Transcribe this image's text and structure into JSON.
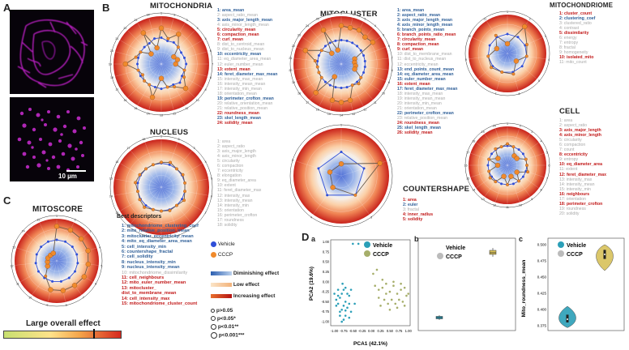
{
  "panels": {
    "A": "A",
    "B": "B",
    "C": "C",
    "D": "D",
    "Da": "a",
    "Db": "b",
    "Dc": "c"
  },
  "scale_bar": "10 µm",
  "titles": {
    "mitochondria": "MITOCHONDRIA",
    "mitocluster": "MITOCLUSTER",
    "mitochondriome": "MITOCHONDRIOME",
    "nucleus": "NUCLEUS",
    "countershape": "COUNTERSHAPE",
    "cell": "CELL",
    "mitoscore": "MITOSCORE",
    "best_descriptors": "Best descriptors",
    "large_effect": "Large overall effect"
  },
  "mito_features": [
    {
      "t": "1: area_mean",
      "c": "blue"
    },
    {
      "t": "2: aspect_ratio_mean",
      "c": "gray"
    },
    {
      "t": "3: axis_major_length_mean",
      "c": "blue"
    },
    {
      "t": "4: axis_minor_length_mean",
      "c": "gray"
    },
    {
      "t": "5: circularity_mean",
      "c": "red"
    },
    {
      "t": "6: compaction_mean",
      "c": "red"
    },
    {
      "t": "7: curl_mean",
      "c": "red"
    },
    {
      "t": "8: dist_to_centroid_mean",
      "c": "gray"
    },
    {
      "t": "9: dist_to_nucleus_mean",
      "c": "gray"
    },
    {
      "t": "10: eccentricity_mean",
      "c": "blue"
    },
    {
      "t": "11: eq_diameter_area_mean",
      "c": "gray"
    },
    {
      "t": "12: euler_number_mean",
      "c": "gray"
    },
    {
      "t": "13: extent_mean",
      "c": "red"
    },
    {
      "t": "14: feret_diameter_max_mean",
      "c": "blue"
    },
    {
      "t": "15: intensity_max_mean",
      "c": "gray"
    },
    {
      "t": "16: intensity_mean_mean",
      "c": "gray"
    },
    {
      "t": "17: intensity_min_mean",
      "c": "gray"
    },
    {
      "t": "18: orientation_mean",
      "c": "gray"
    },
    {
      "t": "19: perimeter_crofton_mean",
      "c": "blue"
    },
    {
      "t": "20: relative_orientation_mean",
      "c": "gray"
    },
    {
      "t": "21: relative_position_mean",
      "c": "gray"
    },
    {
      "t": "22: roundness_mean",
      "c": "red"
    },
    {
      "t": "23: skel_length_mean",
      "c": "blue"
    },
    {
      "t": "24: solidity_mean",
      "c": "red"
    }
  ],
  "cluster_features": [
    {
      "t": "1: area_mean",
      "c": "blue"
    },
    {
      "t": "2: aspect_ratio_mean",
      "c": "blue"
    },
    {
      "t": "3: axis_major_length_mean",
      "c": "blue"
    },
    {
      "t": "4: axis_minor_length_mean",
      "c": "blue"
    },
    {
      "t": "5: branch_points_mean",
      "c": "blue"
    },
    {
      "t": "6: branch_points_ratio_mean",
      "c": "red"
    },
    {
      "t": "7: circularity_mean",
      "c": "red"
    },
    {
      "t": "8: compaction_mean",
      "c": "red"
    },
    {
      "t": "9: curl_mean",
      "c": "red"
    },
    {
      "t": "10: dist_to_membrane_mean",
      "c": "gray"
    },
    {
      "t": "11: dist_to_nucleus_mean",
      "c": "gray"
    },
    {
      "t": "12: eccentricity_mean",
      "c": "gray"
    },
    {
      "t": "13: end_points_count_mean",
      "c": "blue"
    },
    {
      "t": "14: eq_diameter_area_mean",
      "c": "blue"
    },
    {
      "t": "15: euler_number_mean",
      "c": "blue"
    },
    {
      "t": "16: extent_mean",
      "c": "red"
    },
    {
      "t": "17: feret_diameter_max_mean",
      "c": "blue"
    },
    {
      "t": "18: intensity_max_mean",
      "c": "gray"
    },
    {
      "t": "19: intensity_mean_mean",
      "c": "gray"
    },
    {
      "t": "20: intensity_min_mean",
      "c": "gray"
    },
    {
      "t": "21: orientation_mean",
      "c": "gray"
    },
    {
      "t": "22: perimeter_crofton_mean",
      "c": "blue"
    },
    {
      "t": "23: relative_position_mean",
      "c": "gray"
    },
    {
      "t": "24: roundness_mean",
      "c": "red"
    },
    {
      "t": "25: skel_length_mean",
      "c": "blue"
    },
    {
      "t": "26: solidity_mean",
      "c": "red"
    }
  ],
  "mitochondriome_features": [
    {
      "t": "1: cluster_count",
      "c": "red"
    },
    {
      "t": "2: clustering_coef",
      "c": "blue"
    },
    {
      "t": "3: clustered_ratio",
      "c": "gray"
    },
    {
      "t": "4: contrast",
      "c": "gray"
    },
    {
      "t": "5: dissimilarity",
      "c": "red"
    },
    {
      "t": "6: energy",
      "c": "gray"
    },
    {
      "t": "7: entropy",
      "c": "gray"
    },
    {
      "t": "8: fractal",
      "c": "gray"
    },
    {
      "t": "9: homogeneity",
      "c": "gray"
    },
    {
      "t": "10: isolated_mito",
      "c": "red"
    },
    {
      "t": "11: mito_count",
      "c": "gray"
    }
  ],
  "nucleus_features": [
    {
      "t": "1: area",
      "c": "gray"
    },
    {
      "t": "2: aspect_ratio",
      "c": "gray"
    },
    {
      "t": "3: axis_major_length",
      "c": "gray"
    },
    {
      "t": "4: axis_minor_length",
      "c": "gray"
    },
    {
      "t": "5: circularity",
      "c": "gray"
    },
    {
      "t": "6: compaction",
      "c": "gray"
    },
    {
      "t": "7: eccentricity",
      "c": "gray"
    },
    {
      "t": "8: elongation",
      "c": "gray"
    },
    {
      "t": "9: eq_diameter_area",
      "c": "gray"
    },
    {
      "t": "10: extent",
      "c": "gray"
    },
    {
      "t": "11: feret_diameter_max",
      "c": "gray"
    },
    {
      "t": "12: intensity_max",
      "c": "gray"
    },
    {
      "t": "13: intensity_mean",
      "c": "gray"
    },
    {
      "t": "14: intensity_min",
      "c": "gray"
    },
    {
      "t": "15: orientation",
      "c": "gray"
    },
    {
      "t": "16: perimeter_crofton",
      "c": "gray"
    },
    {
      "t": "17: roundness",
      "c": "gray"
    },
    {
      "t": "18: solidity",
      "c": "gray"
    }
  ],
  "countershape_features": [
    {
      "t": "1: area",
      "c": "red"
    },
    {
      "t": "2: euler",
      "c": "blue"
    },
    {
      "t": "3: fractal",
      "c": "gray"
    },
    {
      "t": "4: inner_radius",
      "c": "red"
    },
    {
      "t": "5: solidity",
      "c": "red"
    }
  ],
  "cell_features": [
    {
      "t": "1: area",
      "c": "gray"
    },
    {
      "t": "2: aspect_ratio",
      "c": "gray"
    },
    {
      "t": "3: axis_major_length",
      "c": "red"
    },
    {
      "t": "4: axis_minor_length",
      "c": "red"
    },
    {
      "t": "5: circularity",
      "c": "gray"
    },
    {
      "t": "6: compaction",
      "c": "gray"
    },
    {
      "t": "7: count",
      "c": "gray"
    },
    {
      "t": "8: eccentricity",
      "c": "red"
    },
    {
      "t": "9: entropy",
      "c": "gray"
    },
    {
      "t": "10: eq_diameter_area",
      "c": "red"
    },
    {
      "t": "11: extent",
      "c": "gray"
    },
    {
      "t": "12: feret_diameter_max",
      "c": "red"
    },
    {
      "t": "13: intensity_max",
      "c": "gray"
    },
    {
      "t": "14: intensity_mean",
      "c": "gray"
    },
    {
      "t": "15: intensity_min",
      "c": "gray"
    },
    {
      "t": "16: neighbours",
      "c": "red"
    },
    {
      "t": "17: orientation",
      "c": "gray"
    },
    {
      "t": "18: perimeter_crofton",
      "c": "red"
    },
    {
      "t": "19: roundness",
      "c": "gray"
    },
    {
      "t": "20: solidity",
      "c": "gray"
    }
  ],
  "best_descriptors": [
    {
      "t": "1: mitochondriome_clustering_coef",
      "c": "blue"
    },
    {
      "t": "2: mito_relative_position_mean",
      "c": "blue"
    },
    {
      "t": "3: mitocluster_eccentricity_mean",
      "c": "blue"
    },
    {
      "t": "4: mito_eq_diameter_area_mean",
      "c": "blue"
    },
    {
      "t": "5: cell_intensity_min",
      "c": "blue"
    },
    {
      "t": "6: countershape_fractal",
      "c": "blue"
    },
    {
      "t": "7: cell_solidity",
      "c": "blue"
    },
    {
      "t": "8: nucleus_intensity_min",
      "c": "blue"
    },
    {
      "t": "9: nucleus_intensity_mean",
      "c": "blue"
    },
    {
      "t": "10: mitochondriome_dissimilarity",
      "c": "gray"
    },
    {
      "t": "11: cell_neighbours",
      "c": "red"
    },
    {
      "t": "12: mito_euler_number_mean",
      "c": "red"
    },
    {
      "t": "13: mitocluster_",
      "c": "red"
    },
    {
      "t": "dist_to_membrane_mean",
      "c": "red"
    },
    {
      "t": "14: cell_intensity_max",
      "c": "red"
    },
    {
      "t": "15: mitochondriome_cluster_count",
      "c": "red"
    }
  ],
  "legend": {
    "vehicle": "Vehicle",
    "cccp": "CCCP",
    "vehicle_color": "#2f4fd8",
    "cccp_color": "#f08a2c",
    "effects": [
      "Diminishing effect",
      "Low effect",
      "Increasing effect"
    ],
    "pvalues": [
      "p>0.05",
      "p<0.05*",
      "p<0.01**",
      "p<0.001***"
    ]
  },
  "pca": {
    "xlabel": "PCA1 (42.1%)",
    "ylabel": "PCA2 (19.6%)",
    "box_ylabel": "",
    "violin_ylabel": "Mito_roundness_mean"
  },
  "chart_data": [
    {
      "type": "scatter",
      "title": "",
      "xlabel": "PCA1 (42.1%)",
      "ylabel": "PCA2 (19.6%)",
      "xlim": [
        -1.1,
        1.05
      ],
      "ylim": [
        -1.1,
        1.05
      ],
      "xticks": [
        "-1.00",
        "-0.75",
        "-0.50",
        "-0.25",
        "0.00",
        "0.25",
        "0.50",
        "0.75",
        "1.00"
      ],
      "yticks": [
        "1.00",
        "0.75",
        "0.50",
        "0.25",
        "0.00",
        "-0.25",
        "-0.50",
        "-0.75",
        "-1.00"
      ],
      "series": [
        {
          "name": "Vehicle",
          "color": "#2b9fb8",
          "points": [
            [
              -0.75,
              -0.2
            ],
            [
              -0.8,
              -0.3
            ],
            [
              -0.85,
              -0.4
            ],
            [
              -0.9,
              -0.35
            ],
            [
              -0.95,
              -0.45
            ],
            [
              -0.7,
              -0.5
            ],
            [
              -0.75,
              -0.6
            ],
            [
              -0.8,
              -0.7
            ],
            [
              -0.85,
              -0.75
            ],
            [
              -0.9,
              -0.55
            ],
            [
              -0.65,
              -0.65
            ],
            [
              -0.7,
              -0.85
            ],
            [
              -0.6,
              -0.9
            ],
            [
              -0.55,
              -0.75
            ],
            [
              -0.75,
              -0.95
            ],
            [
              -0.95,
              -0.6
            ],
            [
              -0.85,
              -0.85
            ],
            [
              -0.6,
              -0.35
            ],
            [
              -0.7,
              -0.15
            ],
            [
              -0.78,
              -0.05
            ],
            [
              -0.5,
              0.95
            ],
            [
              -0.35,
              0.95
            ],
            [
              -0.45,
              -0.55
            ],
            [
              -0.55,
              -0.2
            ],
            [
              -0.65,
              -0.3
            ],
            [
              -0.9,
              -0.2
            ],
            [
              -1.0,
              -0.3
            ],
            [
              -0.8,
              -1.0
            ],
            [
              -0.7,
              -0.72
            ],
            [
              -0.6,
              -0.55
            ]
          ]
        },
        {
          "name": "CCCP",
          "color": "#a6ae6a",
          "points": [
            [
              0.1,
              -0.1
            ],
            [
              0.2,
              -0.2
            ],
            [
              0.3,
              -0.15
            ],
            [
              0.4,
              -0.3
            ],
            [
              0.5,
              -0.25
            ],
            [
              0.6,
              -0.1
            ],
            [
              0.7,
              -0.3
            ],
            [
              0.8,
              -0.2
            ],
            [
              0.9,
              -0.15
            ],
            [
              0.35,
              -0.45
            ],
            [
              0.45,
              -0.55
            ],
            [
              0.55,
              -0.45
            ],
            [
              0.65,
              -0.55
            ],
            [
              0.75,
              -0.45
            ],
            [
              0.85,
              -0.5
            ],
            [
              0.25,
              -0.6
            ],
            [
              0.5,
              -0.7
            ],
            [
              0.15,
              0.3
            ],
            [
              0.05,
              0.2
            ],
            [
              0.95,
              -0.35
            ],
            [
              0.7,
              -0.65
            ],
            [
              0.3,
              0.05
            ],
            [
              0.6,
              0.0
            ],
            [
              0.8,
              -0.05
            ],
            [
              0.4,
              -0.05
            ],
            [
              0.2,
              -0.4
            ],
            [
              1.0,
              -0.3
            ],
            [
              0.9,
              -0.6
            ]
          ]
        }
      ]
    },
    {
      "type": "box",
      "title": "",
      "categories": [
        "Vehicle",
        "CCCP"
      ],
      "series": [
        {
          "name": "Vehicle",
          "color": "#2b9fb8",
          "median": -0.8,
          "q1": -0.83,
          "q3": -0.77,
          "min": -0.86,
          "max": -0.74
        },
        {
          "name": "CCCP",
          "color": "#d8c15a",
          "median": 0.8,
          "q1": 0.76,
          "q3": 0.86,
          "min": 0.7,
          "max": 0.92
        }
      ]
    },
    {
      "type": "violin",
      "title": "",
      "ylabel": "Mito_roundness_mean",
      "categories": [
        "Vehicle",
        "CCCP"
      ],
      "yticks": [
        "0.500",
        "0.475",
        "0.450",
        "0.425",
        "0.400",
        "0.375"
      ],
      "ylim": [
        0.37,
        0.505
      ],
      "series": [
        {
          "name": "Vehicle",
          "color": "#2b9fb8",
          "median": 0.385,
          "q1": 0.38,
          "q3": 0.392,
          "min": 0.372,
          "max": 0.405
        },
        {
          "name": "CCCP",
          "color": "#d8c15a",
          "median": 0.485,
          "q1": 0.478,
          "q3": 0.492,
          "min": 0.46,
          "max": 0.5
        }
      ]
    }
  ],
  "radar_data": {
    "mitochondria": {
      "n": 24,
      "vehicle": [
        0.55,
        0.5,
        0.52,
        0.5,
        0.48,
        0.5,
        0.52,
        0.5,
        0.5,
        0.55,
        0.5,
        0.5,
        0.52,
        0.5,
        0.5,
        0.5,
        0.5,
        0.5,
        0.5,
        0.5,
        0.5,
        0.5,
        0.5,
        0.55
      ],
      "cccp": [
        0.75,
        0.55,
        0.72,
        0.5,
        0.3,
        0.35,
        0.3,
        0.5,
        0.55,
        0.72,
        0.55,
        0.5,
        0.3,
        0.72,
        0.5,
        0.5,
        0.45,
        0.5,
        0.75,
        0.55,
        0.5,
        0.3,
        0.75,
        0.35
      ]
    },
    "mitocluster": {
      "n": 26,
      "vehicle": [
        0.5,
        0.5,
        0.5,
        0.5,
        0.5,
        0.5,
        0.5,
        0.5,
        0.5,
        0.5,
        0.5,
        0.5,
        0.5,
        0.5,
        0.5,
        0.5,
        0.5,
        0.5,
        0.5,
        0.5,
        0.5,
        0.5,
        0.5,
        0.5,
        0.5,
        0.5
      ],
      "cccp": [
        0.8,
        0.78,
        0.8,
        0.75,
        0.8,
        0.3,
        0.28,
        0.3,
        0.3,
        0.5,
        0.55,
        0.5,
        0.78,
        0.8,
        0.78,
        0.3,
        0.8,
        0.5,
        0.5,
        0.5,
        0.55,
        0.8,
        0.5,
        0.3,
        0.8,
        0.3
      ]
    },
    "mitochondriome": {
      "n": 11,
      "vehicle": [
        0.5,
        0.5,
        0.5,
        0.5,
        0.5,
        0.5,
        0.5,
        0.5,
        0.5,
        0.5,
        0.5
      ],
      "cccp": [
        0.25,
        0.82,
        0.55,
        0.5,
        0.3,
        0.55,
        0.5,
        0.55,
        0.5,
        0.3,
        0.55
      ]
    },
    "nucleus": {
      "n": 18,
      "vehicle": [
        0.5,
        0.5,
        0.5,
        0.5,
        0.5,
        0.5,
        0.5,
        0.5,
        0.5,
        0.5,
        0.5,
        0.5,
        0.5,
        0.5,
        0.5,
        0.5,
        0.5,
        0.5
      ],
      "cccp": [
        0.52,
        0.55,
        0.5,
        0.52,
        0.5,
        0.5,
        0.55,
        0.5,
        0.52,
        0.5,
        0.5,
        0.55,
        0.52,
        0.5,
        0.55,
        0.52,
        0.5,
        0.5
      ]
    },
    "countershape": {
      "n": 5,
      "vehicle": [
        0.5,
        0.5,
        0.5,
        0.5,
        0.5
      ],
      "cccp": [
        0.25,
        0.85,
        0.5,
        0.3,
        0.25
      ]
    },
    "cell": {
      "n": 20,
      "vehicle": [
        0.5,
        0.5,
        0.5,
        0.5,
        0.5,
        0.5,
        0.5,
        0.5,
        0.5,
        0.5,
        0.5,
        0.5,
        0.5,
        0.5,
        0.5,
        0.5,
        0.5,
        0.5,
        0.5,
        0.5
      ],
      "cccp": [
        0.55,
        0.5,
        0.3,
        0.3,
        0.5,
        0.5,
        0.55,
        0.3,
        0.5,
        0.3,
        0.5,
        0.3,
        0.52,
        0.55,
        0.5,
        0.25,
        0.5,
        0.3,
        0.52,
        0.5
      ]
    },
    "mitoscore": {
      "n": 15,
      "vehicle": [
        0.5,
        0.5,
        0.5,
        0.5,
        0.5,
        0.5,
        0.5,
        0.5,
        0.5,
        0.5,
        0.5,
        0.5,
        0.5,
        0.5,
        0.5
      ],
      "cccp": [
        0.82,
        0.8,
        0.78,
        0.78,
        0.75,
        0.75,
        0.72,
        0.72,
        0.7,
        0.45,
        0.25,
        0.22,
        0.22,
        0.2,
        0.2
      ]
    }
  }
}
